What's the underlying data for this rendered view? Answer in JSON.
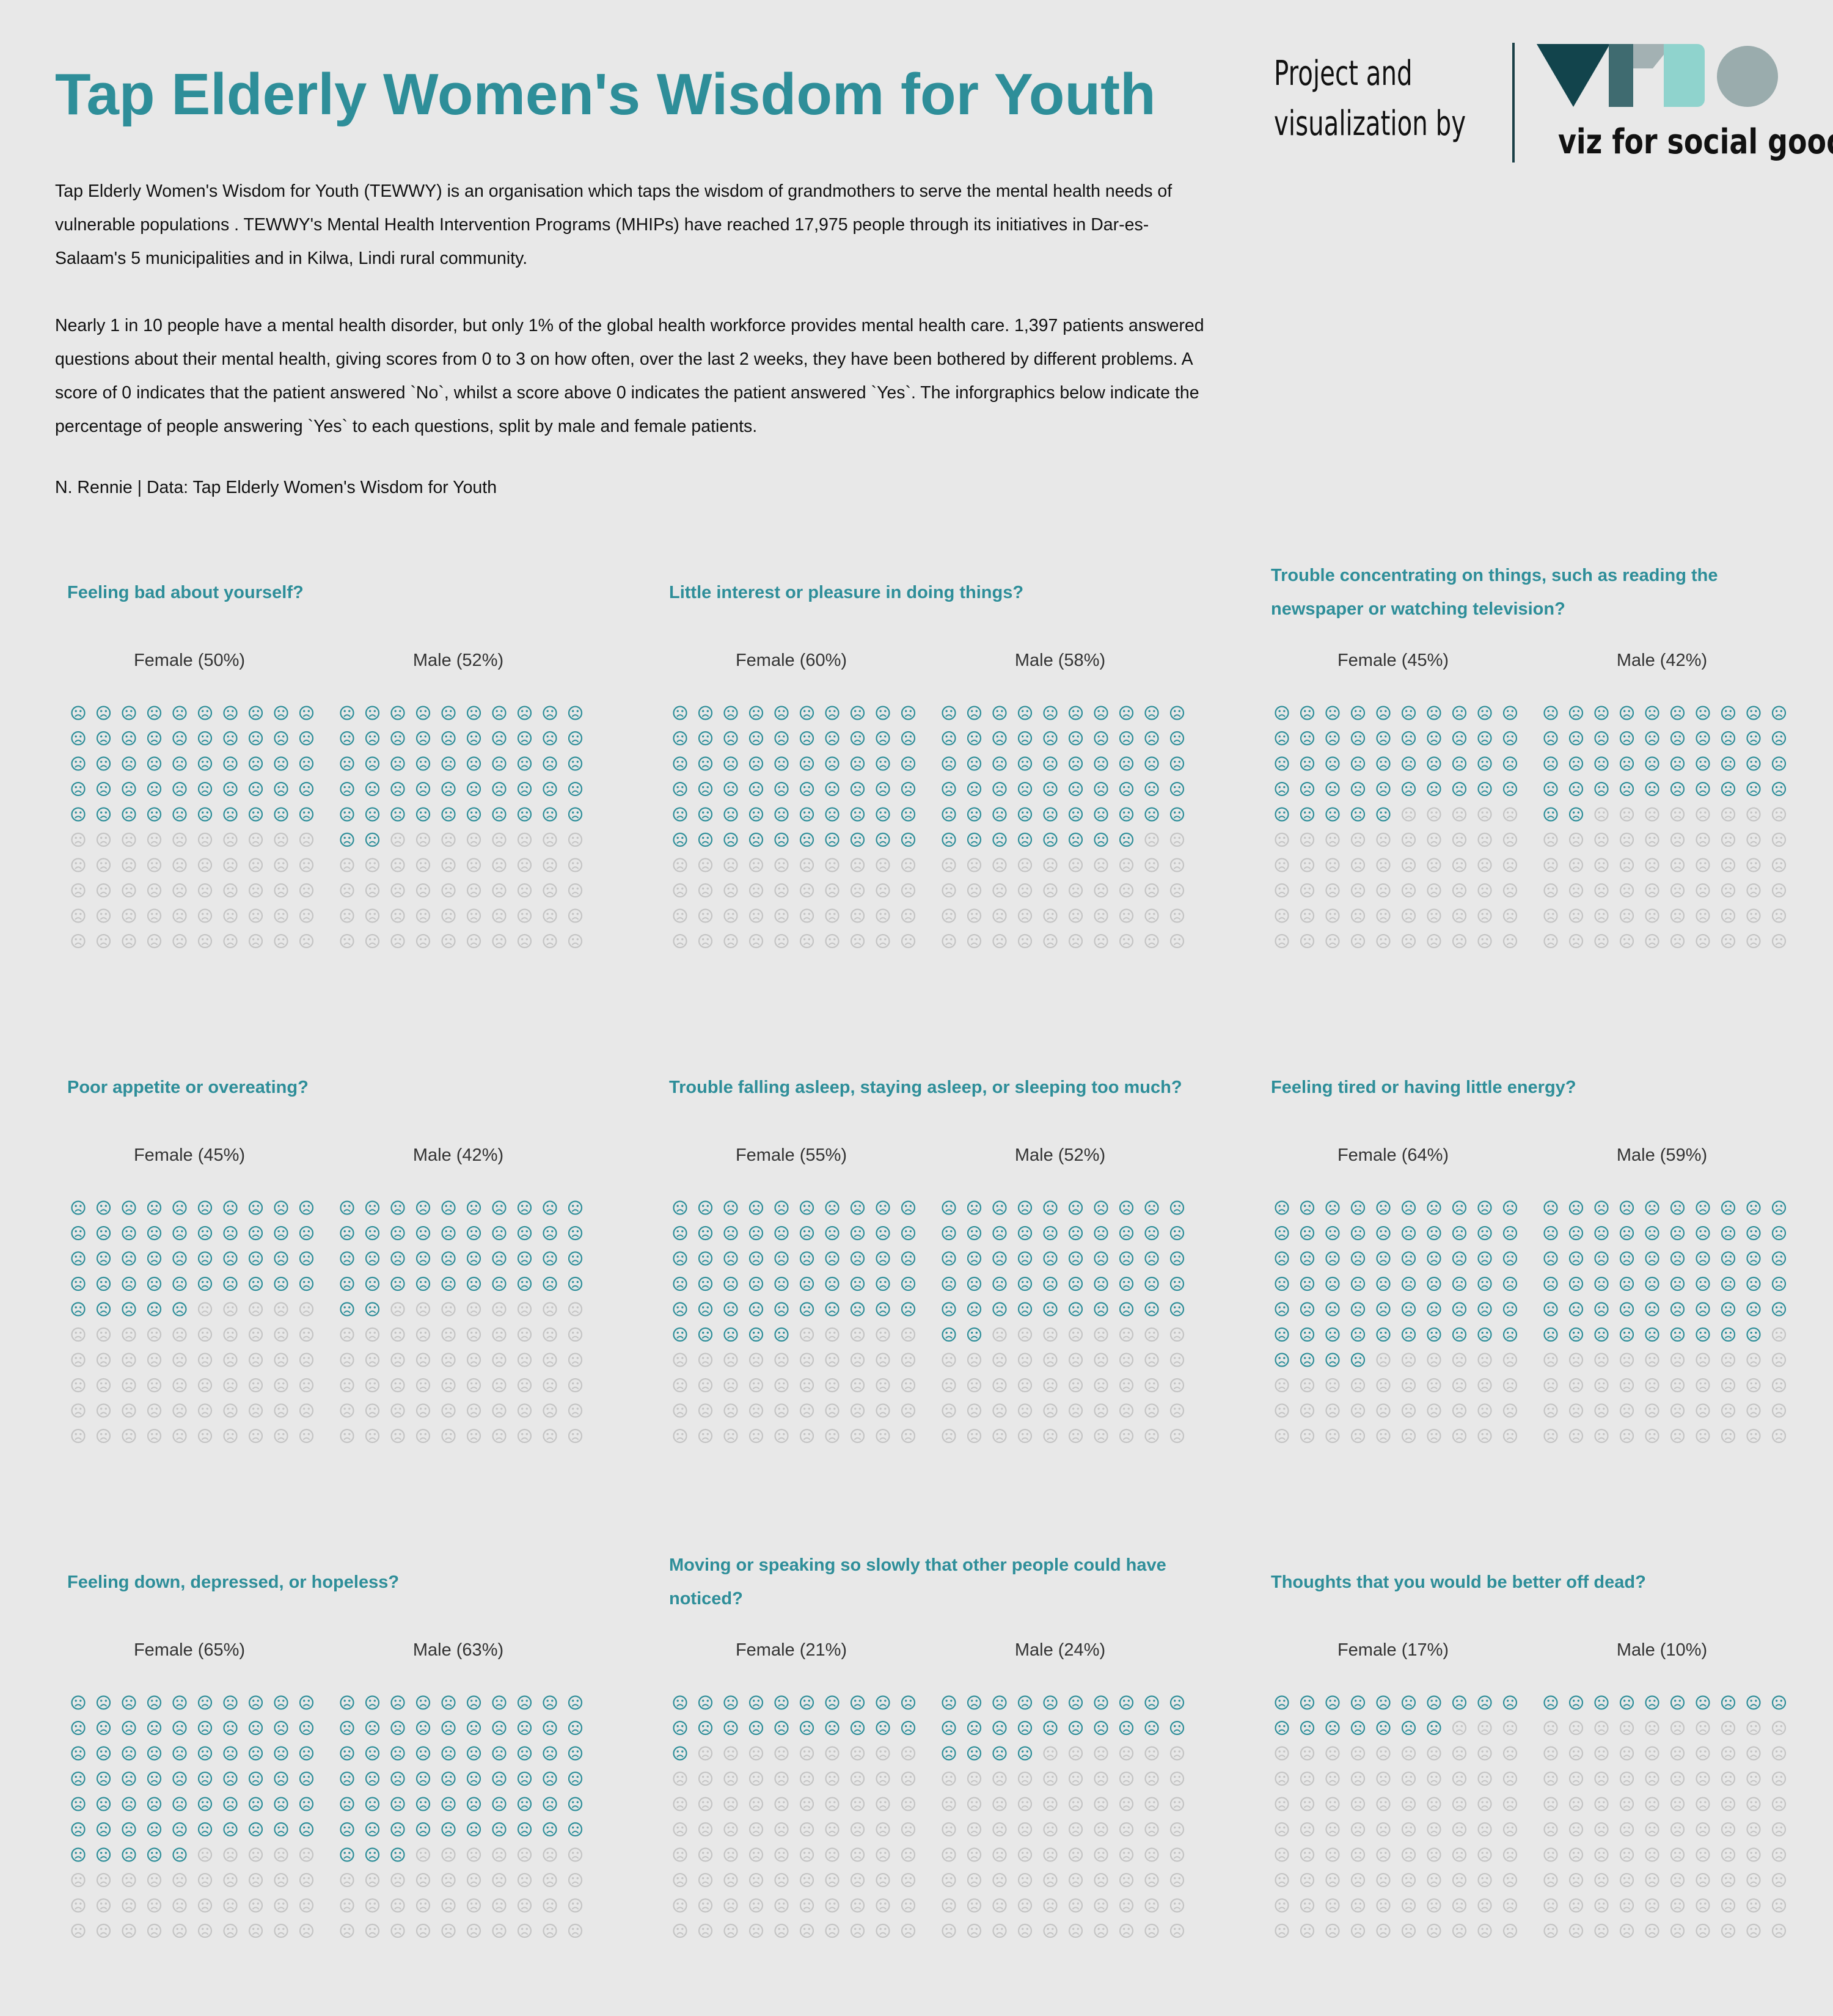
{
  "header": {
    "title": "Tap Elderly Women's Wisdom for Youth",
    "paragraph1": "Tap Elderly Women's Wisdom for Youth (TEWWY) is an organisation which taps the wisdom of grandmothers to serve the mental health needs of vulnerable populations . TEWWY's Mental Health Intervention Programs (MHIPs) have reached 17,975 people through its initiatives in Dar-es-Salaam's 5 municipalities and in Kilwa, Lindi rural community.",
    "paragraph2": "Nearly 1 in 10 people have a mental health disorder, but only 1% of the global health workforce provides mental health care. 1,397 patients answered questions about their mental health, giving scores from 0 to 3 on how often, over the last 2 weeks, they have been bothered by different problems. A score of 0 indicates that the patient answered `No`, whilst a score above 0 indicates the patient answered `Yes`. The inforgraphics below indicate the percentage of people answering `Yes` to each questions, split by male and female patients.",
    "credit": "N. Rennie | Data: Tap Elderly Women's Wisdom for Youth"
  },
  "logo": {
    "line1": "Project and",
    "line2": "visualization by",
    "tagline": "viz for social good",
    "colors": [
      "#12444c",
      "#a3b1b3",
      "#3f6b70",
      "#8fd3cd",
      "#9aacad"
    ]
  },
  "colors": {
    "accent": "#2e8e99",
    "icon_yes": "#2e8e99",
    "icon_no": "#c4c4c4",
    "background": "#e8e8e8"
  },
  "icon": "sad-face-icon",
  "chart_data": [
    {
      "type": "waffle",
      "title": "Feeling bad about yourself?",
      "categories": [
        "Female",
        "Male"
      ],
      "labels": [
        "Female (50%)",
        "Male (52%)"
      ],
      "values": [
        50,
        52
      ],
      "unit": "%",
      "grid": [
        10,
        10
      ]
    },
    {
      "type": "waffle",
      "title": "Little interest or pleasure in doing things?",
      "categories": [
        "Female",
        "Male"
      ],
      "labels": [
        "Female (60%)",
        "Male (58%)"
      ],
      "values": [
        60,
        58
      ],
      "unit": "%",
      "grid": [
        10,
        10
      ]
    },
    {
      "type": "waffle",
      "title": "Trouble concentrating on things, such as reading the newspaper or watching television?",
      "categories": [
        "Female",
        "Male"
      ],
      "labels": [
        "Female (45%)",
        "Male (42%)"
      ],
      "values": [
        45,
        42
      ],
      "unit": "%",
      "grid": [
        10,
        10
      ]
    },
    {
      "type": "waffle",
      "title": "Poor appetite or overeating?",
      "categories": [
        "Female",
        "Male"
      ],
      "labels": [
        "Female (45%)",
        "Male (42%)"
      ],
      "values": [
        45,
        42
      ],
      "unit": "%",
      "grid": [
        10,
        10
      ]
    },
    {
      "type": "waffle",
      "title": "Trouble falling asleep, staying asleep, or sleeping too much?",
      "categories": [
        "Female",
        "Male"
      ],
      "labels": [
        "Female (55%)",
        "Male (52%)"
      ],
      "values": [
        55,
        52
      ],
      "unit": "%",
      "grid": [
        10,
        10
      ]
    },
    {
      "type": "waffle",
      "title": "Feeling tired or having little energy?",
      "categories": [
        "Female",
        "Male"
      ],
      "labels": [
        "Female (64%)",
        "Male (59%)"
      ],
      "values": [
        64,
        59
      ],
      "unit": "%",
      "grid": [
        10,
        10
      ]
    },
    {
      "type": "waffle",
      "title": "Feeling down, depressed, or hopeless?",
      "categories": [
        "Female",
        "Male"
      ],
      "labels": [
        "Female (65%)",
        "Male (63%)"
      ],
      "values": [
        65,
        63
      ],
      "unit": "%",
      "grid": [
        10,
        10
      ]
    },
    {
      "type": "waffle",
      "title": "Moving or speaking so slowly that other people could have noticed?",
      "categories": [
        "Female",
        "Male"
      ],
      "labels": [
        "Female (21%)",
        "Male (24%)"
      ],
      "values": [
        21,
        24
      ],
      "unit": "%",
      "grid": [
        10,
        10
      ]
    },
    {
      "type": "waffle",
      "title": "Thoughts that you would be better off dead?",
      "categories": [
        "Female",
        "Male"
      ],
      "labels": [
        "Female (17%)",
        "Male (10%)"
      ],
      "values": [
        17,
        10
      ],
      "unit": "%",
      "grid": [
        10,
        10
      ]
    }
  ]
}
